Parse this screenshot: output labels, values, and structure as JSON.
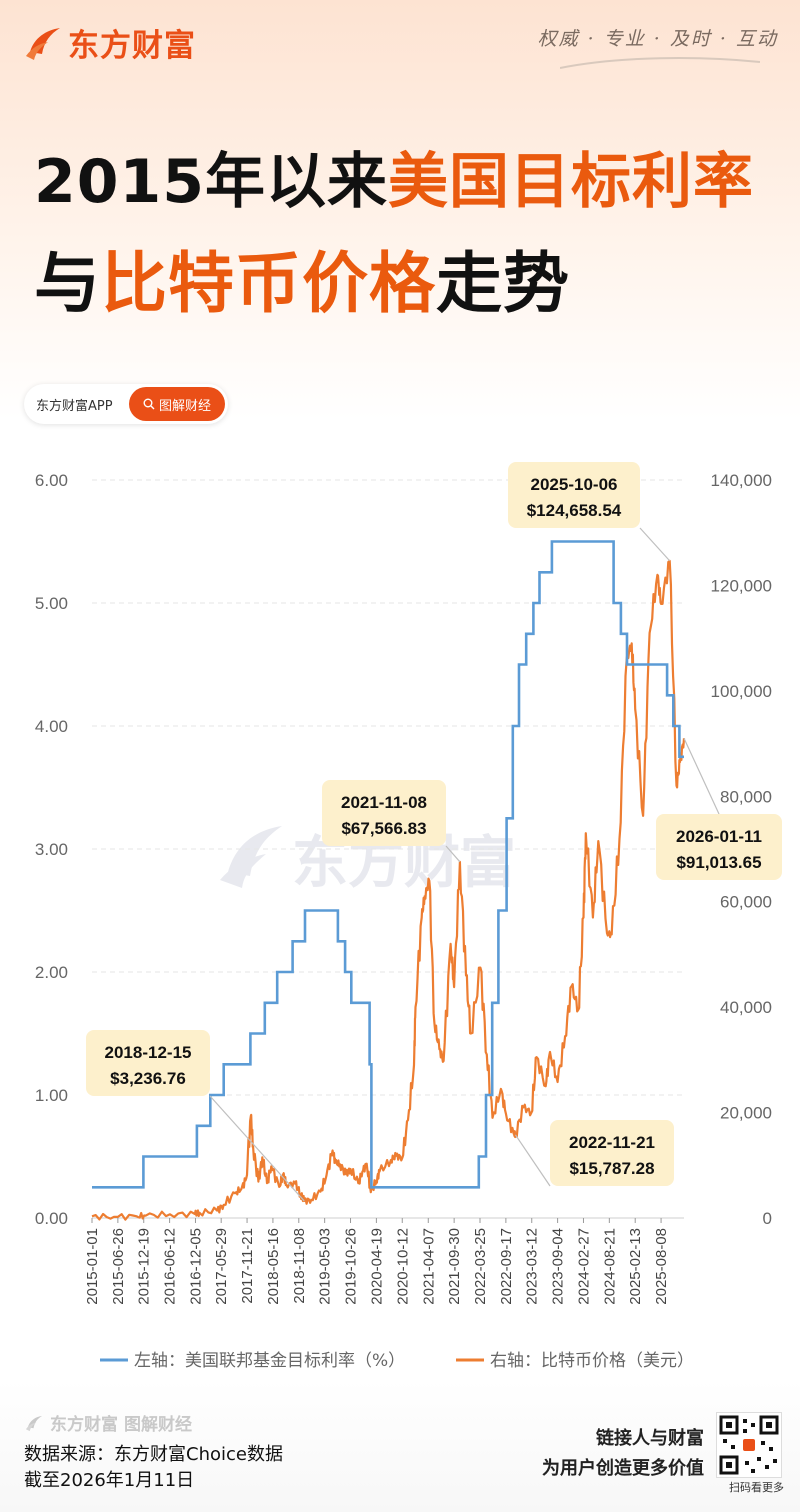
{
  "brand": {
    "name": "东方财富",
    "slogan": "权威 · 专业 · 及时 · 互动"
  },
  "title": {
    "line1_a": "2015年以来",
    "line1_b": "美国目标利率",
    "line2_a": "与",
    "line2_b": "比特币价格",
    "line2_c": "走势"
  },
  "pill": {
    "app": "东方财富APP",
    "button": "图解财经"
  },
  "watermark": "东方财富",
  "colors": {
    "rate": "#5b9bd5",
    "btc": "#ed7d31",
    "accent": "#ea4f17",
    "callout_bg": "#fdf0cc"
  },
  "chart_data": {
    "type": "line",
    "x_ticks": [
      "2015-01-01",
      "2015-06-26",
      "2015-12-19",
      "2016-06-12",
      "2016-12-05",
      "2017-05-29",
      "2017-11-21",
      "2018-05-16",
      "2018-11-08",
      "2019-05-03",
      "2019-10-26",
      "2020-04-19",
      "2020-10-12",
      "2021-04-07",
      "2021-09-30",
      "2022-03-25",
      "2022-09-17",
      "2023-03-12",
      "2023-09-04",
      "2024-02-27",
      "2024-08-21",
      "2025-02-13",
      "2025-08-08"
    ],
    "left_axis": {
      "min": 0,
      "max": 6,
      "ticks": [
        "0.00",
        "1.00",
        "2.00",
        "3.00",
        "4.00",
        "5.00",
        "6.00"
      ]
    },
    "right_axis": {
      "min": 0,
      "max": 140000,
      "ticks": [
        "0",
        "20,000",
        "40,000",
        "60,000",
        "80,000",
        "100,000",
        "120,000",
        "140,000"
      ]
    },
    "series": [
      {
        "name": "左轴：美国联邦基金目标利率（%）",
        "axis": "left",
        "points": [
          [
            "2015-01-01",
            0.25
          ],
          [
            "2015-12-17",
            0.25
          ],
          [
            "2015-12-17",
            0.5
          ],
          [
            "2016-12-15",
            0.5
          ],
          [
            "2016-12-15",
            0.75
          ],
          [
            "2017-03-16",
            0.75
          ],
          [
            "2017-03-16",
            1.0
          ],
          [
            "2017-06-15",
            1.0
          ],
          [
            "2017-06-15",
            1.25
          ],
          [
            "2017-12-14",
            1.25
          ],
          [
            "2017-12-14",
            1.5
          ],
          [
            "2018-03-22",
            1.5
          ],
          [
            "2018-03-22",
            1.75
          ],
          [
            "2018-06-14",
            1.75
          ],
          [
            "2018-06-14",
            2.0
          ],
          [
            "2018-09-27",
            2.0
          ],
          [
            "2018-09-27",
            2.25
          ],
          [
            "2018-12-20",
            2.25
          ],
          [
            "2018-12-20",
            2.5
          ],
          [
            "2019-08-01",
            2.5
          ],
          [
            "2019-08-01",
            2.25
          ],
          [
            "2019-09-19",
            2.25
          ],
          [
            "2019-09-19",
            2.0
          ],
          [
            "2019-10-31",
            2.0
          ],
          [
            "2019-10-31",
            1.75
          ],
          [
            "2020-03-04",
            1.75
          ],
          [
            "2020-03-04",
            1.25
          ],
          [
            "2020-03-16",
            1.25
          ],
          [
            "2020-03-16",
            0.25
          ],
          [
            "2022-03-17",
            0.25
          ],
          [
            "2022-03-17",
            0.5
          ],
          [
            "2022-05-05",
            0.5
          ],
          [
            "2022-05-05",
            1.0
          ],
          [
            "2022-06-16",
            1.0
          ],
          [
            "2022-06-16",
            1.75
          ],
          [
            "2022-07-28",
            1.75
          ],
          [
            "2022-07-28",
            2.5
          ],
          [
            "2022-09-22",
            2.5
          ],
          [
            "2022-09-22",
            3.25
          ],
          [
            "2022-11-03",
            3.25
          ],
          [
            "2022-11-03",
            4.0
          ],
          [
            "2022-12-15",
            4.0
          ],
          [
            "2022-12-15",
            4.5
          ],
          [
            "2023-02-02",
            4.5
          ],
          [
            "2023-02-02",
            4.75
          ],
          [
            "2023-03-23",
            4.75
          ],
          [
            "2023-03-23",
            5.0
          ],
          [
            "2023-05-04",
            5.0
          ],
          [
            "2023-05-04",
            5.25
          ],
          [
            "2023-07-27",
            5.25
          ],
          [
            "2023-07-27",
            5.5
          ],
          [
            "2024-09-19",
            5.5
          ],
          [
            "2024-09-19",
            5.0
          ],
          [
            "2024-11-08",
            5.0
          ],
          [
            "2024-11-08",
            4.75
          ],
          [
            "2024-12-19",
            4.75
          ],
          [
            "2024-12-19",
            4.5
          ],
          [
            "2025-09-18",
            4.5
          ],
          [
            "2025-09-18",
            4.25
          ],
          [
            "2025-10-30",
            4.25
          ],
          [
            "2025-10-30",
            4.0
          ],
          [
            "2025-12-11",
            4.0
          ],
          [
            "2025-12-11",
            3.75
          ],
          [
            "2026-01-11",
            3.75
          ]
        ]
      },
      {
        "name": "右轴：比特币价格（美元）",
        "axis": "right",
        "points": [
          [
            "2015-01-01",
            315
          ],
          [
            "2015-06-01",
            230
          ],
          [
            "2015-11-01",
            320
          ],
          [
            "2016-01-01",
            430
          ],
          [
            "2016-06-15",
            700
          ],
          [
            "2016-12-01",
            750
          ],
          [
            "2017-01-01",
            1000
          ],
          [
            "2017-05-01",
            1400
          ],
          [
            "2017-06-15",
            2500
          ],
          [
            "2017-09-01",
            4700
          ],
          [
            "2017-10-15",
            5600
          ],
          [
            "2017-11-15",
            7500
          ],
          [
            "2017-12-17",
            19400
          ],
          [
            "2018-01-01",
            13500
          ],
          [
            "2018-02-06",
            6900
          ],
          [
            "2018-03-05",
            11500
          ],
          [
            "2018-04-06",
            6600
          ],
          [
            "2018-05-05",
            9800
          ],
          [
            "2018-06-28",
            5900
          ],
          [
            "2018-07-25",
            8300
          ],
          [
            "2018-08-15",
            6300
          ],
          [
            "2018-10-15",
            6500
          ],
          [
            "2018-11-20",
            4500
          ],
          [
            "2018-12-15",
            3236.76
          ],
          [
            "2019-02-01",
            3450
          ],
          [
            "2019-04-05",
            5000
          ],
          [
            "2019-05-15",
            8000
          ],
          [
            "2019-06-26",
            12800
          ],
          [
            "2019-07-15",
            10500
          ],
          [
            "2019-08-15",
            10200
          ],
          [
            "2019-09-25",
            8300
          ],
          [
            "2019-10-26",
            9300
          ],
          [
            "2019-12-18",
            6600
          ],
          [
            "2020-01-15",
            8800
          ],
          [
            "2020-02-13",
            10300
          ],
          [
            "2020-03-12",
            4900
          ],
          [
            "2020-04-19",
            7100
          ],
          [
            "2020-05-10",
            8800
          ],
          [
            "2020-07-27",
            11000
          ],
          [
            "2020-09-01",
            11800
          ],
          [
            "2020-10-12",
            11400
          ],
          [
            "2020-11-20",
            18600
          ],
          [
            "2020-12-31",
            29000
          ],
          [
            "2021-01-10",
            40000
          ],
          [
            "2021-02-21",
            57000
          ],
          [
            "2021-03-13",
            61000
          ],
          [
            "2021-04-14",
            64000
          ],
          [
            "2021-05-19",
            37000
          ],
          [
            "2021-06-22",
            32000
          ],
          [
            "2021-07-20",
            29800
          ],
          [
            "2021-09-06",
            52000
          ],
          [
            "2021-09-30",
            43800
          ],
          [
            "2021-11-08",
            67566.83
          ],
          [
            "2021-12-20",
            46000
          ],
          [
            "2022-01-22",
            35000
          ],
          [
            "2022-03-28",
            47500
          ],
          [
            "2022-05-10",
            31000
          ],
          [
            "2022-06-18",
            19000
          ],
          [
            "2022-08-14",
            24500
          ],
          [
            "2022-09-17",
            19800
          ],
          [
            "2022-11-09",
            16000
          ],
          [
            "2022-11-21",
            15787.28
          ],
          [
            "2023-01-15",
            21000
          ],
          [
            "2023-03-10",
            20000
          ],
          [
            "2023-04-14",
            30500
          ],
          [
            "2023-06-15",
            25000
          ],
          [
            "2023-07-14",
            31500
          ],
          [
            "2023-09-04",
            25800
          ],
          [
            "2023-10-25",
            34500
          ],
          [
            "2023-12-08",
            44000
          ],
          [
            "2024-01-23",
            39500
          ],
          [
            "2024-02-27",
            57000
          ],
          [
            "2024-03-14",
            73000
          ],
          [
            "2024-05-01",
            57000
          ],
          [
            "2024-06-07",
            71500
          ],
          [
            "2024-08-05",
            54000
          ],
          [
            "2024-09-06",
            53800
          ],
          [
            "2024-10-29",
            72000
          ],
          [
            "2024-12-17",
            106000
          ],
          [
            "2025-01-20",
            109000
          ],
          [
            "2025-02-13",
            96500
          ],
          [
            "2025-04-08",
            76300
          ],
          [
            "2025-05-22",
            111000
          ],
          [
            "2025-07-14",
            122000
          ],
          [
            "2025-08-08",
            116500
          ],
          [
            "2025-10-06",
            124658.54
          ],
          [
            "2025-11-21",
            82000
          ],
          [
            "2025-12-15",
            86500
          ],
          [
            "2026-01-11",
            91013.65
          ]
        ]
      }
    ],
    "annotations": [
      {
        "date": "2018-12-15",
        "value": "$3,236.76"
      },
      {
        "date": "2021-11-08",
        "value": "$67,566.83"
      },
      {
        "date": "2022-11-21",
        "value": "$15,787.28"
      },
      {
        "date": "2025-10-06",
        "value": "$124,658.54"
      },
      {
        "date": "2026-01-11",
        "value": "$91,013.65"
      }
    ],
    "legend_position": "bottom",
    "grid": "horizontal-dashed"
  },
  "footer": {
    "brand": "东方财富",
    "brand_sub": "图解财经",
    "source": "数据来源：东方财富Choice数据",
    "cutoff": "截至2026年1月11日",
    "tagline1": "链接人与财富",
    "tagline2": "为用户创造更多价值",
    "qr_label": "扫码看更多"
  }
}
